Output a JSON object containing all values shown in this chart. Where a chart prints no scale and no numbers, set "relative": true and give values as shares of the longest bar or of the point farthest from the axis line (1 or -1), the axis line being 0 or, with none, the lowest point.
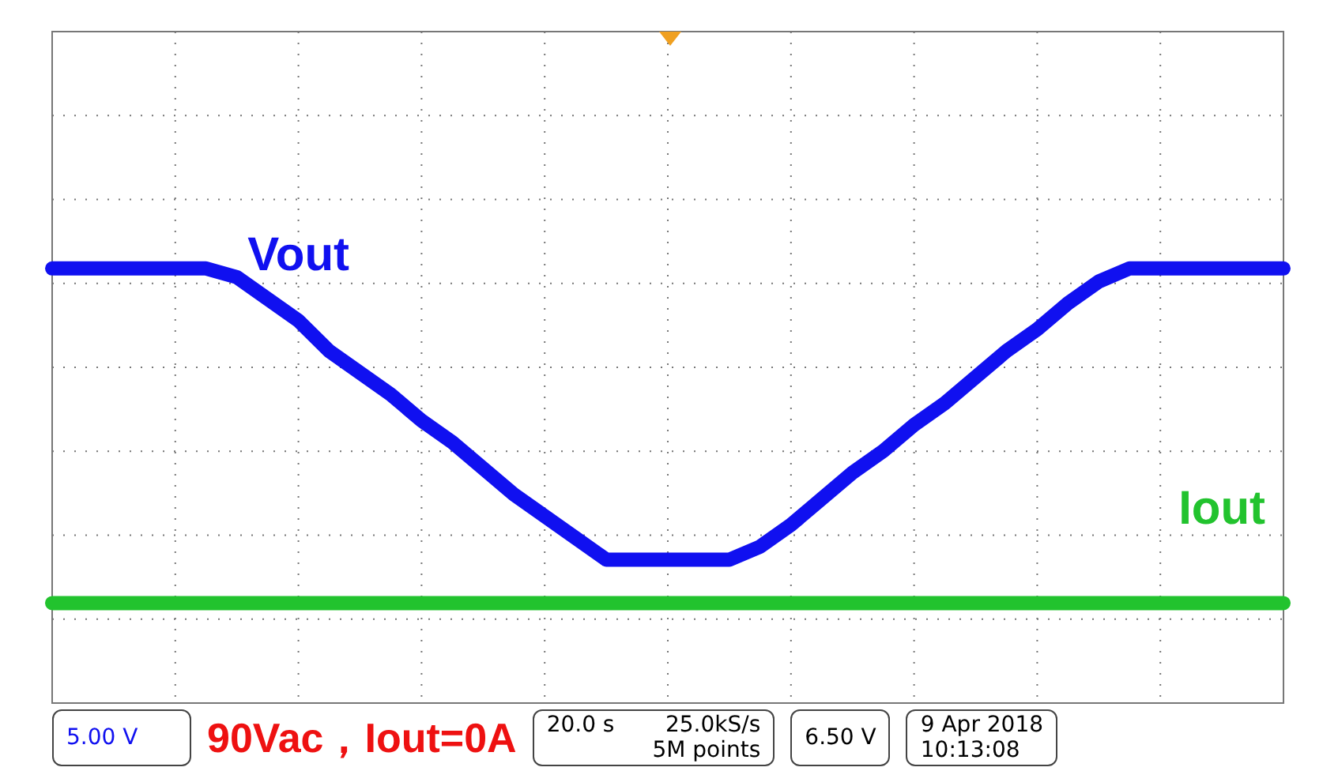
{
  "chart_data": {
    "type": "line",
    "relative": true,
    "title": "90Vac，Iout=0A",
    "categories": [
      null,
      null,
      null,
      null,
      null,
      null,
      null,
      null,
      null,
      null,
      null,
      null,
      null,
      null,
      null,
      null,
      null,
      null,
      null,
      null,
      null,
      null,
      null,
      null,
      null,
      null,
      null,
      null,
      null,
      null,
      null,
      null,
      null,
      null,
      null,
      null,
      null,
      null,
      null,
      null,
      null
    ],
    "series": [
      {
        "name": "Vout",
        "color": "#1010f0",
        "values": [
          1,
          1,
          1,
          1,
          1,
          1,
          0.98,
          0.93,
          0.88,
          0.81,
          0.76,
          0.71,
          0.65,
          0.6,
          0.54,
          0.48,
          0.43,
          0.38,
          0.33,
          0.33,
          0.33,
          0.33,
          0.33,
          0.36,
          0.41,
          0.47,
          0.53,
          0.58,
          0.64,
          0.69,
          0.75,
          0.81,
          0.86,
          0.92,
          0.97,
          1,
          1,
          1,
          1,
          1,
          1
        ]
      },
      {
        "name": "Iout",
        "color": "#22c32e",
        "values": [
          0.23,
          0.23,
          0.23,
          0.23,
          0.23,
          0.23,
          0.23,
          0.23,
          0.23,
          0.23,
          0.23,
          0.23,
          0.23,
          0.23,
          0.23,
          0.23,
          0.23,
          0.23,
          0.23,
          0.23,
          0.23,
          0.23,
          0.23,
          0.23,
          0.23,
          0.23,
          0.23,
          0.23,
          0.23,
          0.23,
          0.23,
          0.23,
          0.23,
          0.23,
          0.23,
          0.23,
          0.23,
          0.23,
          0.23,
          0.23,
          0.23
        ]
      }
    ],
    "annotations": [
      "5.00 V",
      "20.0 s",
      "25.0kS/s",
      "5M points",
      "6.50 V",
      "9 Apr 2018",
      "10:13:08"
    ],
    "grid": true,
    "legend": false,
    "marker": "none",
    "line_style": "solid"
  }
}
